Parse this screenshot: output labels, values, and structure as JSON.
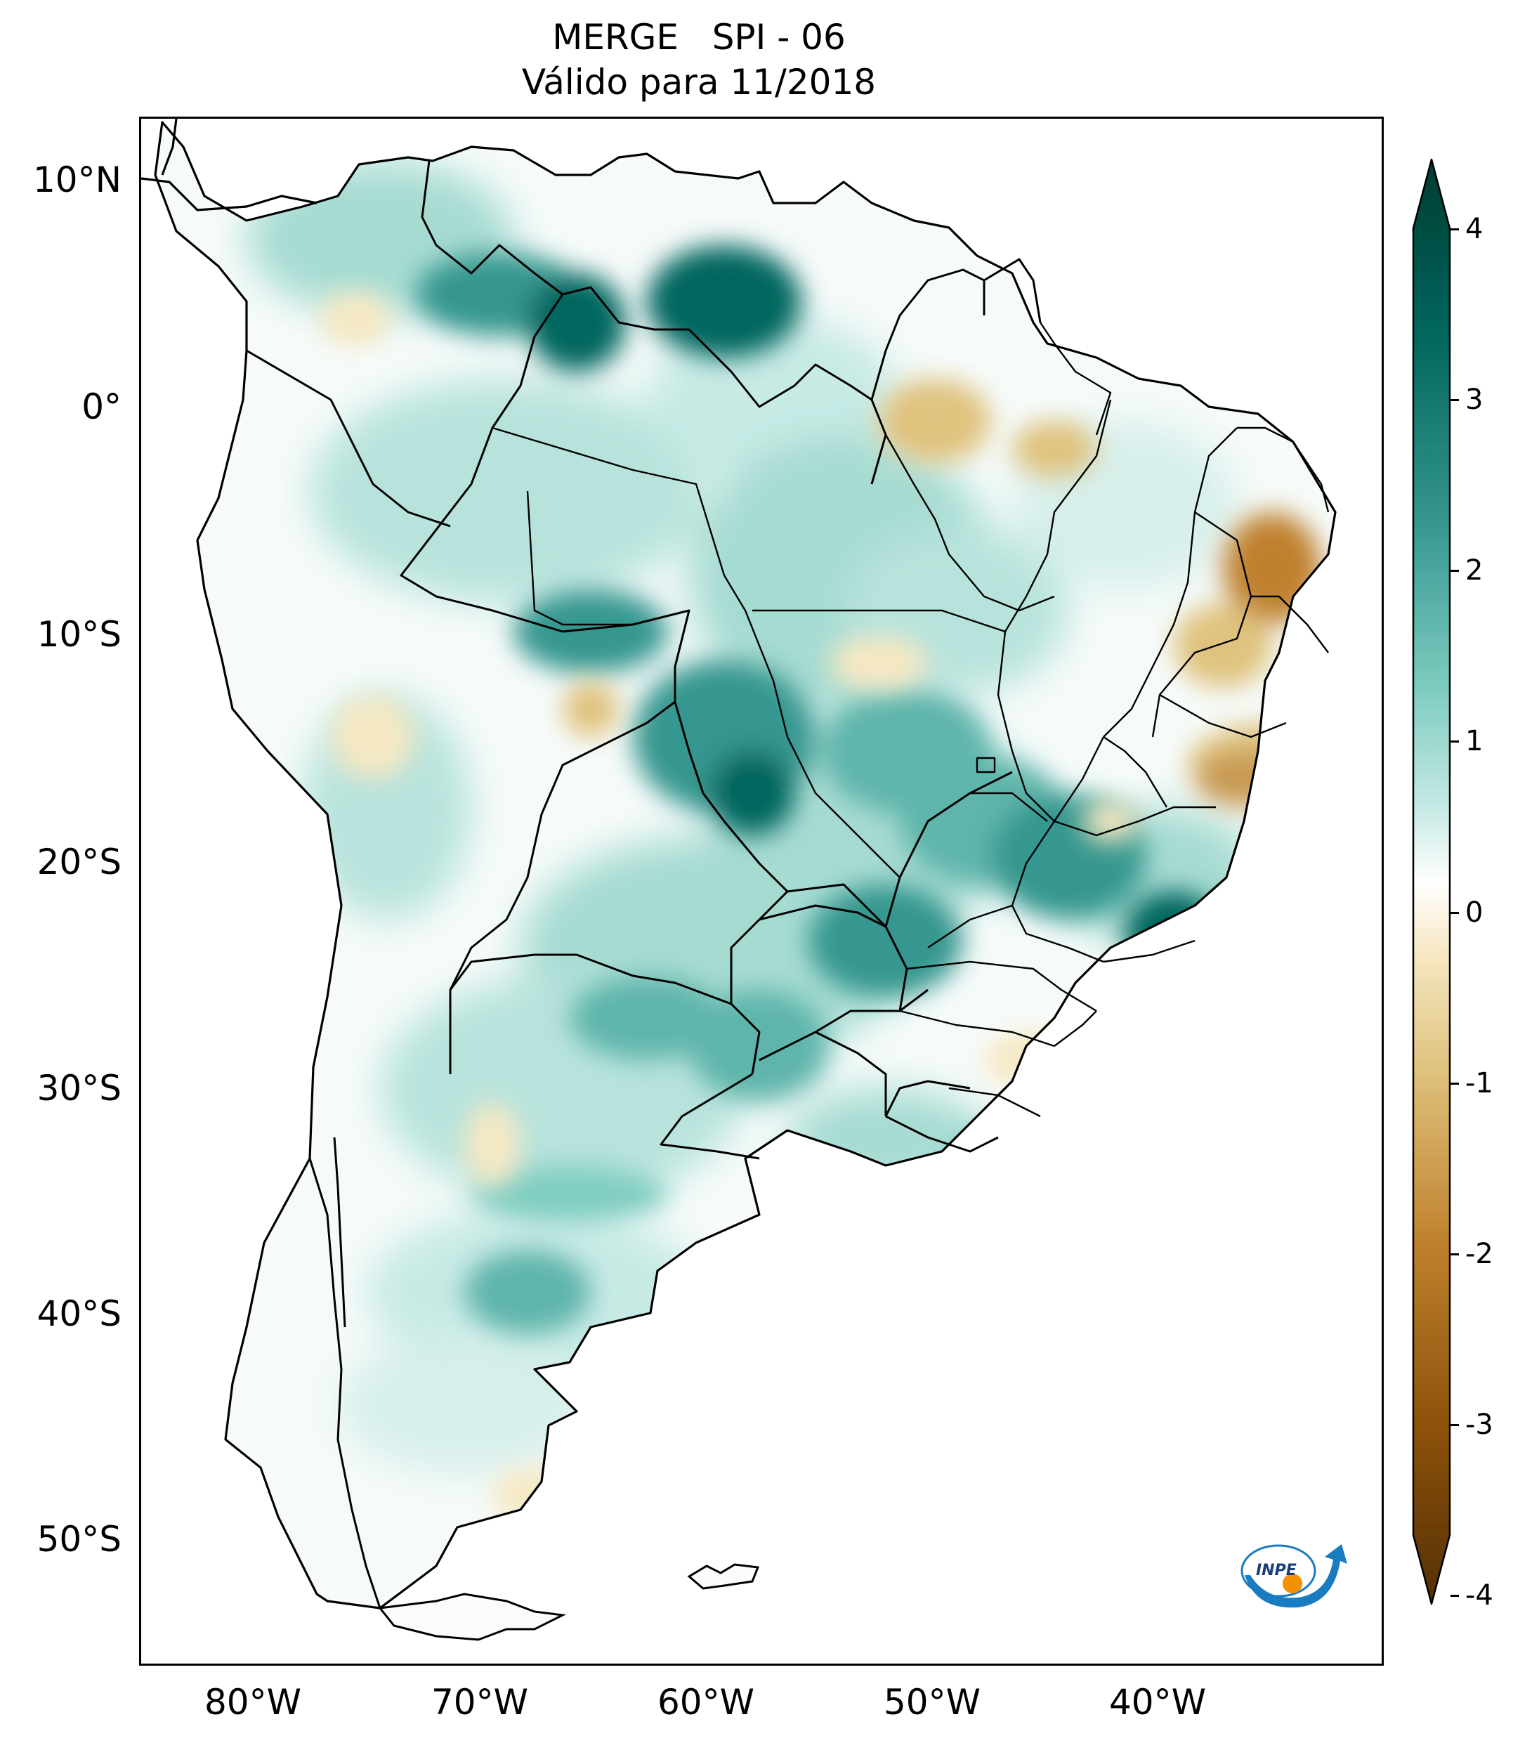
{
  "title": {
    "line1": "MERGE   SPI - 06",
    "line2": "Válido para 11/2018"
  },
  "axes": {
    "lat_labels": [
      "10°N",
      "0°",
      "10°S",
      "20°S",
      "30°S",
      "40°S",
      "50°S"
    ],
    "lon_labels": [
      "80°W",
      "70°W",
      "60°W",
      "50°W",
      "40°W"
    ],
    "lat_values": [
      10,
      0,
      -10,
      -20,
      -30,
      -40,
      -50
    ],
    "lon_values": [
      -80,
      -70,
      -60,
      -50,
      -40
    ],
    "lon_range": [
      -85,
      -30
    ],
    "lat_range": [
      -56,
      12.5
    ]
  },
  "colorbar": {
    "labels": [
      "4",
      "3",
      "2",
      "1",
      "0",
      "-1",
      "-2",
      "-3",
      "-4"
    ],
    "values": [
      4,
      3,
      2,
      1,
      0,
      -1,
      -2,
      -3,
      -4
    ],
    "range": [
      -4,
      4
    ],
    "extend": "both",
    "colors": {
      "wet_max": "#003c30",
      "wet_high": "#01665e",
      "wet_mid": "#35978f",
      "wet_low": "#80cdc1",
      "wet_faint": "#c7eae5",
      "neutral": "#ffffff",
      "dry_faint": "#f6e8c3",
      "dry_low": "#dfc27d",
      "dry_mid": "#bf812d",
      "dry_high": "#8c510a",
      "dry_max": "#543005"
    }
  },
  "logo": {
    "text": "INPE",
    "colors": {
      "swoosh": "#1a7cc0",
      "dot": "#f39200"
    }
  }
}
